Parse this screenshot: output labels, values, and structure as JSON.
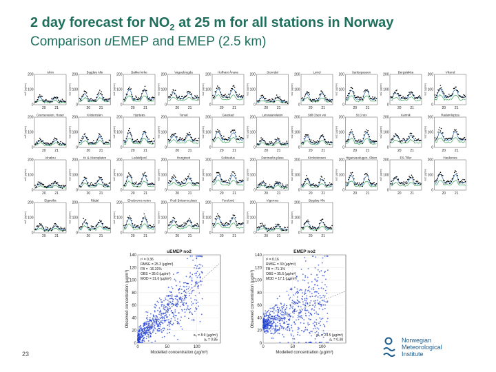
{
  "slide": {
    "title_main": "2 day forecast for NO",
    "title_sub": "2",
    "title_rest": " at 25 m for all stations in Norway",
    "subtitle_pre": "Comparison ",
    "subtitle_italic": "u",
    "subtitle_post": "EMEP and EMEP (2.5 km)",
    "slide_number": "23"
  },
  "logo": {
    "line1": "Norwegian",
    "line2": "Meteorological",
    "line3": "Institute",
    "color": "#1a5b8c"
  },
  "colors": {
    "title": "#1f6f5c",
    "observed": "#000000",
    "uemep": "#2d6fb5",
    "emep": "#3aa35a",
    "scatter": "#1f3fd1"
  },
  "chart_data": [
    {
      "type": "line",
      "panels": [
        "Alnin",
        "Bygdøy Alle",
        "Bakke kirke",
        "Vaguebrygda",
        "Hofhøst Ånane",
        "Stovrdal",
        "Leirol",
        "Sanbypassen",
        "Bergsløkka",
        "Vikund",
        "Grenseveien, Huser",
        "Kristensten",
        "Hjorteøs",
        "Torval",
        "Gaustad",
        "Leisnaanslaten",
        "Still Osen vei",
        "St.Croix",
        "Kannik",
        "Radamloptza",
        "Alnabru",
        "Kr & Akersplaten",
        "Loddefjord",
        "Hungtveit",
        "Sokkedus",
        "Danmarks plass",
        "Kirnkstensen",
        "Higanvaodugen, Skien",
        "ES-Tiller",
        "Haukenes",
        "Eigeeifia",
        "Rådal",
        "Elvebrorns veien",
        "Rodi Bräsens plass",
        "Furulund",
        "Vigernes",
        "Bygdøy Alle"
      ],
      "x_ticks": [
        "20",
        "21"
      ],
      "y_ticks": [
        "0",
        "100",
        "200"
      ],
      "ylim": [
        0,
        200
      ],
      "ylabel": "no2 (µg/m³)",
      "series": [
        {
          "role": "observed",
          "color": "#000000",
          "style": "points"
        },
        {
          "role": "uEMEP",
          "color": "#2d6fb5",
          "style": "line"
        },
        {
          "role": "EMEP",
          "color": "#3aa35a",
          "style": "line"
        }
      ]
    },
    {
      "type": "scatter",
      "title": "uEMEP no2",
      "xlabel": "Modelled concentration (µg/m³)",
      "ylabel": "Observed concentration (µg/m³)",
      "xlim": [
        0,
        140
      ],
      "ylim": [
        0,
        140
      ],
      "x_ticks": [
        "0",
        "50",
        "100"
      ],
      "y_ticks": [
        "0",
        "20",
        "40",
        "60",
        "80",
        "100",
        "120",
        "140"
      ],
      "stats": [
        "r² = 0.36",
        "RMSE = 25.3 (µg/m³)",
        "FB = -16.31%",
        "OBS = 35.6 (µg/m³)",
        "MOD = 31.6 (µg/m³)"
      ],
      "fit": [
        "a₀ = 8.9 (µg/m³)",
        "a₁ = 0.85"
      ],
      "spread": 0.42,
      "slope": 0.85,
      "intercept": 8.9,
      "n": 700
    },
    {
      "type": "scatter",
      "title": "EMEP no2",
      "xlabel": "Modelled concentration (µg/m³)",
      "ylabel": "Observed concentration (µg/m³)",
      "xlim": [
        0,
        140
      ],
      "ylim": [
        0,
        140
      ],
      "x_ticks": [
        "0",
        "50",
        "100"
      ],
      "y_ticks": [
        "0",
        "20",
        "40",
        "60",
        "80",
        "100",
        "120",
        "140"
      ],
      "stats": [
        "r² = 0.16",
        "RMSE = 30 (µg/m³)",
        "FB = -71.1%",
        "OBS = 35.6 (µg/m³)",
        "MOD = 17.1 (µg/m³)"
      ],
      "fit": [
        "a₀ = 29.5 (µg/m³)",
        "a₁ = 0.38"
      ],
      "spread": 0.6,
      "slope": 0.38,
      "intercept": 29.5,
      "n": 700
    }
  ]
}
